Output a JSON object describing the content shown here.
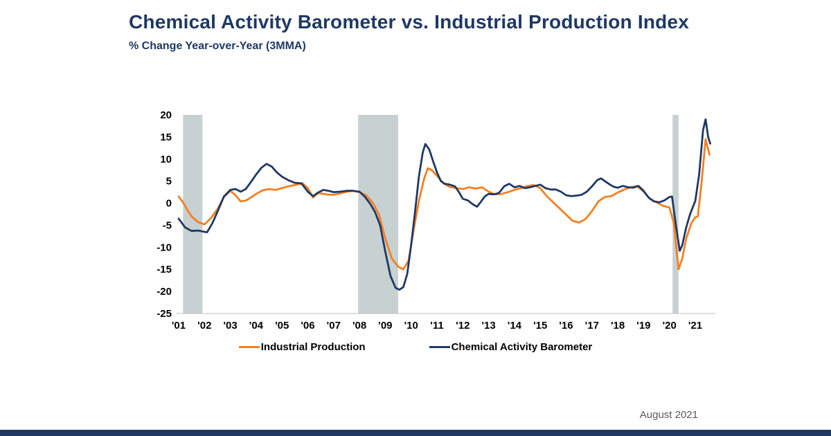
{
  "header": {
    "title": "Chemical Activity Barometer vs. Industrial Production Index",
    "subtitle": "% Change Year-over-Year (3MMA)"
  },
  "footer": {
    "date_label": "August 2021"
  },
  "colors": {
    "title_navy": "#1F3864",
    "recession_band": "#C7D1D1",
    "axis_line": "#BFBFBF",
    "bottom_bar": "#1F3864",
    "footer_text": "#595959"
  },
  "chart_data": {
    "type": "line",
    "title": "Chemical Activity Barometer vs. Industrial Production Index",
    "ylabel": "% Change Year-over-Year (3MMA)",
    "xlabel": "",
    "ylim": [
      -25,
      20
    ],
    "y_ticks": [
      20,
      15,
      10,
      5,
      0,
      -5,
      -10,
      -15,
      -20,
      -25
    ],
    "x_range": [
      2001.0,
      2021.67
    ],
    "x_tick_labels": [
      "'01",
      "'02",
      "'03",
      "'04",
      "'05",
      "'06",
      "'07",
      "'08",
      "'09",
      "'10",
      "'11",
      "'12",
      "'13",
      "'14",
      "'15",
      "'16",
      "'17",
      "'18",
      "'19",
      "'20",
      "'21"
    ],
    "x_tick_years": [
      2001,
      2002,
      2003,
      2004,
      2005,
      2006,
      2007,
      2008,
      2009,
      2010,
      2011,
      2012,
      2013,
      2014,
      2015,
      2016,
      2017,
      2018,
      2019,
      2020,
      2021
    ],
    "grid": false,
    "legend_position": "bottom",
    "recession_bands": [
      [
        2001.17,
        2001.92
      ],
      [
        2007.95,
        2009.5
      ],
      [
        2020.12,
        2020.35
      ]
    ],
    "series": [
      {
        "name": "Industrial Production",
        "color": "#F57E20",
        "points": [
          [
            2001.0,
            1.5
          ],
          [
            2001.17,
            0.2
          ],
          [
            2001.33,
            -1.5
          ],
          [
            2001.5,
            -3.0
          ],
          [
            2001.75,
            -4.3
          ],
          [
            2002.0,
            -4.8
          ],
          [
            2002.25,
            -3.4
          ],
          [
            2002.5,
            -1.4
          ],
          [
            2002.75,
            1.4
          ],
          [
            2003.0,
            2.8
          ],
          [
            2003.2,
            1.8
          ],
          [
            2003.4,
            0.4
          ],
          [
            2003.6,
            0.6
          ],
          [
            2003.8,
            1.3
          ],
          [
            2004.0,
            2.1
          ],
          [
            2004.25,
            2.9
          ],
          [
            2004.5,
            3.2
          ],
          [
            2004.75,
            3.0
          ],
          [
            2005.0,
            3.4
          ],
          [
            2005.25,
            3.8
          ],
          [
            2005.5,
            4.1
          ],
          [
            2005.8,
            4.5
          ],
          [
            2006.0,
            3.4
          ],
          [
            2006.2,
            1.3
          ],
          [
            2006.4,
            2.3
          ],
          [
            2006.6,
            2.1
          ],
          [
            2006.8,
            1.9
          ],
          [
            2007.0,
            1.9
          ],
          [
            2007.25,
            2.2
          ],
          [
            2007.5,
            2.6
          ],
          [
            2007.75,
            2.8
          ],
          [
            2008.0,
            2.5
          ],
          [
            2008.25,
            1.8
          ],
          [
            2008.5,
            0.2
          ],
          [
            2008.75,
            -2.5
          ],
          [
            2009.0,
            -8.0
          ],
          [
            2009.25,
            -12.5
          ],
          [
            2009.5,
            -14.4
          ],
          [
            2009.7,
            -15.0
          ],
          [
            2009.9,
            -13.0
          ],
          [
            2010.1,
            -6.0
          ],
          [
            2010.3,
            0.5
          ],
          [
            2010.5,
            5.5
          ],
          [
            2010.65,
            7.9
          ],
          [
            2010.8,
            7.5
          ],
          [
            2011.0,
            6.2
          ],
          [
            2011.25,
            4.5
          ],
          [
            2011.5,
            3.7
          ],
          [
            2011.75,
            3.4
          ],
          [
            2012.0,
            3.2
          ],
          [
            2012.25,
            3.6
          ],
          [
            2012.5,
            3.3
          ],
          [
            2012.75,
            3.6
          ],
          [
            2013.0,
            2.6
          ],
          [
            2013.25,
            2.0
          ],
          [
            2013.5,
            2.1
          ],
          [
            2013.75,
            2.5
          ],
          [
            2014.0,
            3.0
          ],
          [
            2014.25,
            3.4
          ],
          [
            2014.5,
            3.9
          ],
          [
            2014.75,
            4.1
          ],
          [
            2015.0,
            3.4
          ],
          [
            2015.25,
            1.6
          ],
          [
            2015.5,
            0.2
          ],
          [
            2015.75,
            -1.2
          ],
          [
            2016.0,
            -2.6
          ],
          [
            2016.25,
            -4.0
          ],
          [
            2016.5,
            -4.4
          ],
          [
            2016.75,
            -3.6
          ],
          [
            2017.0,
            -1.8
          ],
          [
            2017.25,
            0.4
          ],
          [
            2017.5,
            1.4
          ],
          [
            2017.75,
            1.6
          ],
          [
            2018.0,
            2.4
          ],
          [
            2018.25,
            3.1
          ],
          [
            2018.5,
            3.6
          ],
          [
            2018.75,
            3.9
          ],
          [
            2019.0,
            2.6
          ],
          [
            2019.25,
            1.0
          ],
          [
            2019.5,
            0.2
          ],
          [
            2019.75,
            -0.6
          ],
          [
            2020.0,
            -1.0
          ],
          [
            2020.17,
            -4.5
          ],
          [
            2020.35,
            -15.0
          ],
          [
            2020.5,
            -12.5
          ],
          [
            2020.65,
            -8.0
          ],
          [
            2020.85,
            -4.5
          ],
          [
            2021.0,
            -3.2
          ],
          [
            2021.1,
            -3.0
          ],
          [
            2021.25,
            5.0
          ],
          [
            2021.4,
            14.5
          ],
          [
            2021.55,
            11.0
          ]
        ]
      },
      {
        "name": "Chemical Activity Barometer",
        "color": "#1F3864",
        "points": [
          [
            2001.0,
            -3.5
          ],
          [
            2001.25,
            -5.5
          ],
          [
            2001.5,
            -6.3
          ],
          [
            2001.75,
            -6.2
          ],
          [
            2002.0,
            -6.5
          ],
          [
            2002.1,
            -6.6
          ],
          [
            2002.3,
            -4.6
          ],
          [
            2002.5,
            -2.0
          ],
          [
            2002.75,
            1.5
          ],
          [
            2003.0,
            3.0
          ],
          [
            2003.2,
            3.2
          ],
          [
            2003.4,
            2.6
          ],
          [
            2003.6,
            3.2
          ],
          [
            2003.8,
            4.8
          ],
          [
            2004.0,
            6.5
          ],
          [
            2004.2,
            8.0
          ],
          [
            2004.4,
            8.9
          ],
          [
            2004.6,
            8.3
          ],
          [
            2004.8,
            7.0
          ],
          [
            2005.0,
            6.0
          ],
          [
            2005.25,
            5.2
          ],
          [
            2005.5,
            4.6
          ],
          [
            2005.75,
            4.5
          ],
          [
            2006.0,
            2.6
          ],
          [
            2006.2,
            1.6
          ],
          [
            2006.4,
            2.4
          ],
          [
            2006.6,
            3.0
          ],
          [
            2006.8,
            2.8
          ],
          [
            2007.0,
            2.5
          ],
          [
            2007.25,
            2.6
          ],
          [
            2007.5,
            2.8
          ],
          [
            2007.75,
            2.8
          ],
          [
            2008.0,
            2.6
          ],
          [
            2008.2,
            1.5
          ],
          [
            2008.4,
            0.0
          ],
          [
            2008.6,
            -2.0
          ],
          [
            2008.8,
            -5.0
          ],
          [
            2009.0,
            -11.0
          ],
          [
            2009.2,
            -16.5
          ],
          [
            2009.4,
            -19.2
          ],
          [
            2009.55,
            -19.6
          ],
          [
            2009.7,
            -19.0
          ],
          [
            2009.85,
            -16.0
          ],
          [
            2010.0,
            -9.5
          ],
          [
            2010.15,
            -2.0
          ],
          [
            2010.3,
            6.0
          ],
          [
            2010.45,
            11.5
          ],
          [
            2010.55,
            13.4
          ],
          [
            2010.7,
            12.2
          ],
          [
            2010.85,
            9.5
          ],
          [
            2011.0,
            7.0
          ],
          [
            2011.15,
            5.0
          ],
          [
            2011.3,
            4.4
          ],
          [
            2011.5,
            4.2
          ],
          [
            2011.7,
            3.8
          ],
          [
            2011.85,
            2.5
          ],
          [
            2012.0,
            1.0
          ],
          [
            2012.2,
            0.6
          ],
          [
            2012.4,
            -0.3
          ],
          [
            2012.55,
            -0.8
          ],
          [
            2012.7,
            0.3
          ],
          [
            2012.85,
            1.5
          ],
          [
            2013.0,
            2.1
          ],
          [
            2013.2,
            2.0
          ],
          [
            2013.4,
            2.3
          ],
          [
            2013.6,
            3.8
          ],
          [
            2013.8,
            4.4
          ],
          [
            2014.0,
            3.6
          ],
          [
            2014.2,
            3.9
          ],
          [
            2014.4,
            3.4
          ],
          [
            2014.6,
            3.6
          ],
          [
            2014.8,
            3.9
          ],
          [
            2015.0,
            4.2
          ],
          [
            2015.2,
            3.4
          ],
          [
            2015.4,
            3.1
          ],
          [
            2015.6,
            3.1
          ],
          [
            2015.8,
            2.6
          ],
          [
            2016.0,
            1.8
          ],
          [
            2016.2,
            1.6
          ],
          [
            2016.4,
            1.7
          ],
          [
            2016.6,
            1.9
          ],
          [
            2016.8,
            2.6
          ],
          [
            2017.0,
            3.8
          ],
          [
            2017.2,
            5.2
          ],
          [
            2017.35,
            5.6
          ],
          [
            2017.5,
            5.0
          ],
          [
            2017.7,
            4.2
          ],
          [
            2017.85,
            3.7
          ],
          [
            2018.0,
            3.5
          ],
          [
            2018.2,
            3.9
          ],
          [
            2018.4,
            3.6
          ],
          [
            2018.6,
            3.5
          ],
          [
            2018.8,
            3.9
          ],
          [
            2019.0,
            2.8
          ],
          [
            2019.2,
            1.2
          ],
          [
            2019.4,
            0.4
          ],
          [
            2019.6,
            0.2
          ],
          [
            2019.8,
            0.6
          ],
          [
            2020.0,
            1.4
          ],
          [
            2020.1,
            1.5
          ],
          [
            2020.25,
            -5.0
          ],
          [
            2020.4,
            -10.8
          ],
          [
            2020.5,
            -9.5
          ],
          [
            2020.65,
            -5.5
          ],
          [
            2020.8,
            -2.5
          ],
          [
            2021.0,
            0.5
          ],
          [
            2021.15,
            6.5
          ],
          [
            2021.3,
            16.5
          ],
          [
            2021.4,
            19.0
          ],
          [
            2021.5,
            15.0
          ],
          [
            2021.58,
            13.5
          ]
        ]
      }
    ]
  }
}
